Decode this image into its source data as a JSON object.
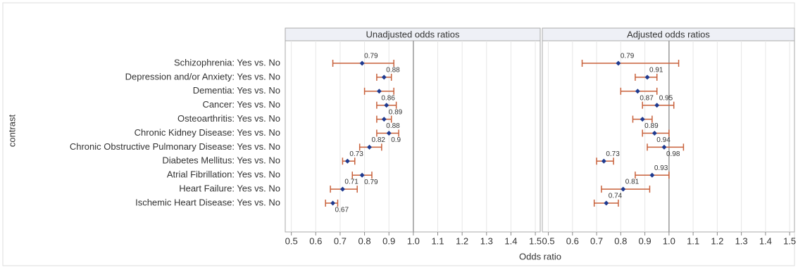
{
  "chart_data": {
    "type": "forest",
    "ylabel": "contrast",
    "xlabel": "Odds ratio",
    "categories": [
      "Schizophrenia: Yes vs. No",
      "Depression and/or Anxiety: Yes vs. No",
      "Dementia: Yes vs. No",
      "Cancer: Yes vs. No",
      "Osteoarthritis: Yes vs. No",
      "Chronic Kidney Disease: Yes vs. No",
      "Chronic Obstructive Pulmonary Disease: Yes vs. No",
      "Diabetes Mellitus: Yes vs. No",
      "Atrial Fibrillation: Yes vs. No",
      "Heart Failure: Yes vs. No",
      "Ischemic Heart Disease: Yes vs. No"
    ],
    "xlim": [
      0.475,
      1.52
    ],
    "xticks": [
      0.5,
      0.6,
      0.7,
      0.8,
      0.9,
      {
        "value": 1,
        "label": "1.0"
      },
      1.1,
      1.2,
      1.3,
      1.4,
      1.5
    ],
    "refline": 1,
    "grid": true,
    "point_color": "#1f3a8f",
    "ci_color": "#c8603a",
    "panels": [
      {
        "title": "Unadjusted odds ratios",
        "values": [
          0.79,
          0.88,
          0.86,
          0.89,
          0.88,
          0.9,
          0.82,
          0.73,
          0.79,
          0.71,
          0.67
        ],
        "lower": [
          0.67,
          0.85,
          0.8,
          0.85,
          0.85,
          0.85,
          0.78,
          0.71,
          0.75,
          0.66,
          0.64
        ],
        "upper": [
          0.92,
          0.91,
          0.92,
          0.93,
          0.91,
          0.94,
          0.87,
          0.76,
          0.83,
          0.77,
          0.69
        ]
      },
      {
        "title": "Adjusted odds ratios",
        "values": [
          0.79,
          0.91,
          0.87,
          0.95,
          0.89,
          0.94,
          0.98,
          0.73,
          0.93,
          0.81,
          0.74
        ],
        "lower": [
          0.64,
          0.86,
          0.8,
          0.89,
          0.85,
          0.89,
          0.91,
          0.7,
          0.86,
          0.72,
          0.69
        ],
        "upper": [
          1.04,
          0.95,
          0.95,
          1.02,
          0.93,
          1.0,
          1.06,
          0.77,
          1.0,
          0.92,
          0.79
        ]
      }
    ]
  }
}
